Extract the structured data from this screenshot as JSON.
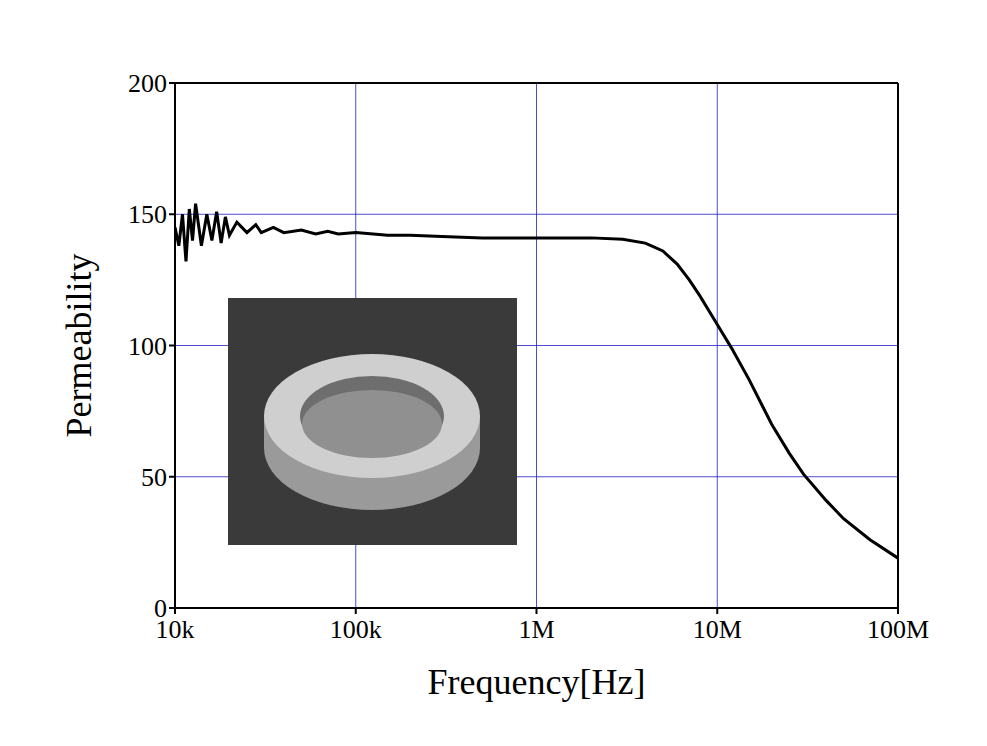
{
  "chart_data": {
    "type": "line",
    "x_label": "Frequency[Hz]",
    "y_label": "Permeability",
    "log": "x",
    "grid": true,
    "xlim": [
      10000,
      100000000
    ],
    "xticks": [
      {
        "value": 10000,
        "label": "10k"
      },
      {
        "value": 100000,
        "label": "100k"
      },
      {
        "value": 1000000,
        "label": "1M"
      },
      {
        "value": 10000000,
        "label": "10M"
      },
      {
        "value": 100000000,
        "label": "100M"
      }
    ],
    "ylim": [
      0,
      200
    ],
    "yticks": [
      0,
      50,
      100,
      150,
      200
    ],
    "x": [
      10000,
      10500,
      11000,
      11500,
      12000,
      12500,
      13000,
      14000,
      15000,
      16000,
      17000,
      18000,
      19000,
      20000,
      22000,
      25000,
      28000,
      30000,
      35000,
      40000,
      50000,
      60000,
      70000,
      80000,
      100000,
      150000,
      200000,
      300000,
      500000,
      1000000,
      2000000,
      3000000,
      4000000,
      5000000,
      6000000,
      7000000,
      8000000,
      10000000,
      12000000,
      15000000,
      20000000,
      25000000,
      30000000,
      40000000,
      50000000,
      70000000,
      100000000
    ],
    "series": [
      {
        "name": "Permeability",
        "color": "#000000",
        "values": [
          145,
          138,
          150,
          132,
          152,
          140,
          154,
          138,
          150,
          140,
          151,
          139,
          149,
          142,
          147,
          143,
          146,
          143,
          145,
          143,
          144,
          142.5,
          143.5,
          142.5,
          143,
          142,
          142,
          141.5,
          141,
          141,
          141,
          140.5,
          139,
          136,
          131,
          125,
          119,
          108,
          99,
          87,
          70,
          59,
          51,
          41,
          34,
          26,
          19
        ]
      }
    ]
  }
}
